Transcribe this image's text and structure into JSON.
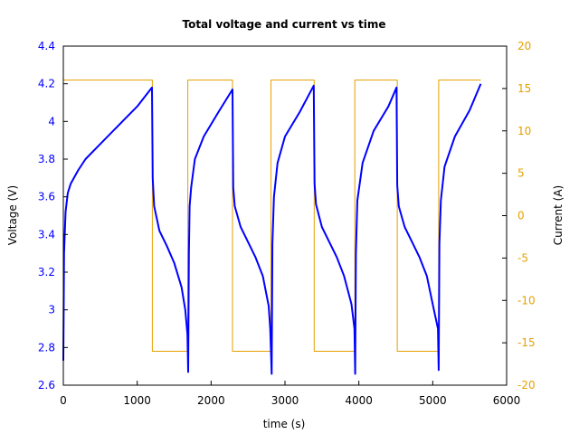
{
  "chart_data": {
    "type": "line",
    "title": "Total voltage and current vs time",
    "xlabel": "time (s)",
    "ylabel": "Voltage (V)",
    "y2label": "Current (A)",
    "xlim": [
      0,
      6000
    ],
    "ylim": [
      2.6,
      4.4
    ],
    "y2lim": [
      -20,
      20
    ],
    "x_ticks": [
      "0",
      "1000",
      "2000",
      "3000",
      "4000",
      "5000",
      "6000"
    ],
    "y_ticks": [
      "2.6",
      "2.8",
      "3",
      "3.2",
      "3.4",
      "3.6",
      "3.8",
      "4",
      "4.2",
      "4.4"
    ],
    "y2_ticks": [
      "-20",
      "-15",
      "-10",
      "-5",
      "0",
      "5",
      "10",
      "15",
      "20"
    ],
    "grid": false,
    "legend": null,
    "colors": {
      "voltage": "#0000ff",
      "current": "#e5a000",
      "left_axis_ticks": "#0000ff",
      "right_axis_ticks": "#e5a000"
    },
    "series": [
      {
        "name": "Voltage (V)",
        "axis": "left",
        "x": [
          0,
          10,
          30,
          60,
          100,
          200,
          300,
          500,
          800,
          1000,
          1200,
          1210,
          1230,
          1300,
          1400,
          1500,
          1600,
          1650,
          1680,
          1690,
          1700,
          1710,
          1730,
          1780,
          1900,
          2100,
          2290,
          2300,
          2320,
          2400,
          2500,
          2600,
          2700,
          2780,
          2800,
          2820,
          2830,
          2850,
          2900,
          3000,
          3200,
          3390,
          3400,
          3420,
          3500,
          3600,
          3700,
          3800,
          3900,
          3940,
          3950,
          3960,
          3980,
          4050,
          4200,
          4400,
          4510,
          4520,
          4540,
          4620,
          4720,
          4820,
          4920,
          5000,
          5070,
          5080,
          5090,
          5110,
          5160,
          5300,
          5500,
          5650
        ],
        "values": [
          2.73,
          3.3,
          3.52,
          3.62,
          3.67,
          3.74,
          3.8,
          3.88,
          4.0,
          4.08,
          4.18,
          3.7,
          3.55,
          3.42,
          3.34,
          3.25,
          3.12,
          3.0,
          2.87,
          2.67,
          3.3,
          3.55,
          3.65,
          3.8,
          3.92,
          4.05,
          4.17,
          3.65,
          3.55,
          3.44,
          3.36,
          3.28,
          3.18,
          3.02,
          2.9,
          2.66,
          3.35,
          3.6,
          3.78,
          3.92,
          4.05,
          4.19,
          3.67,
          3.56,
          3.44,
          3.36,
          3.28,
          3.18,
          3.03,
          2.9,
          2.66,
          3.3,
          3.58,
          3.78,
          3.95,
          4.08,
          4.18,
          3.66,
          3.55,
          3.44,
          3.36,
          3.28,
          3.18,
          3.03,
          2.9,
          2.68,
          3.35,
          3.58,
          3.76,
          3.92,
          4.06,
          4.2
        ]
      },
      {
        "name": "Current (A)",
        "axis": "right",
        "x": [
          0,
          1205,
          1205,
          1685,
          1685,
          2290,
          2290,
          2810,
          2810,
          3395,
          3395,
          3945,
          3945,
          4520,
          4520,
          5080,
          5080,
          5650
        ],
        "values": [
          16,
          16,
          -16,
          -16,
          16,
          16,
          -16,
          -16,
          16,
          16,
          -16,
          -16,
          16,
          16,
          -16,
          -16,
          16,
          16
        ]
      }
    ]
  }
}
